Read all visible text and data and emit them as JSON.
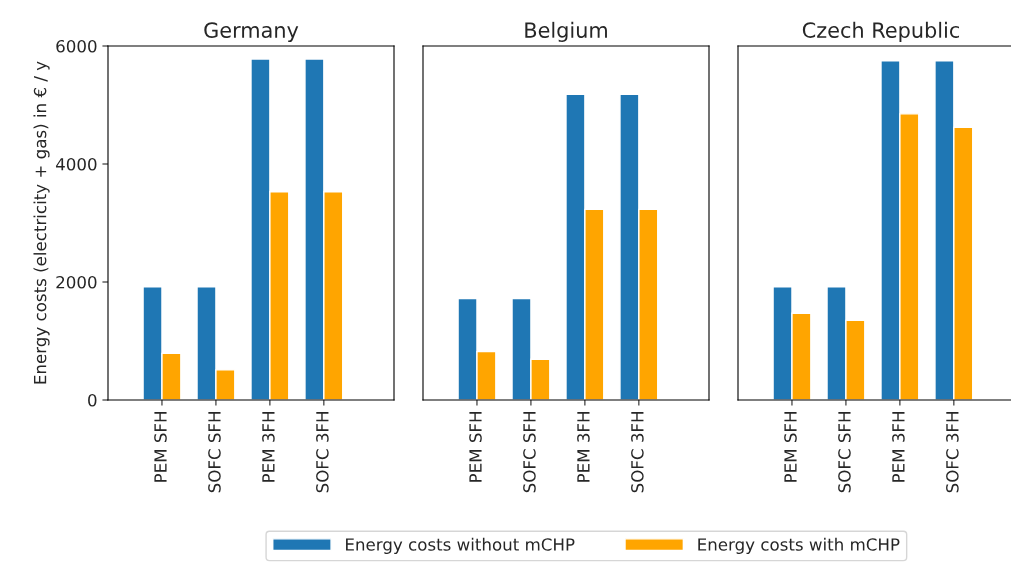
{
  "chart_data": [
    {
      "type": "bar",
      "title": "Germany",
      "ylabel": "Energy costs (electricity + gas) in € / y",
      "categories": [
        "PEM SFH",
        "SOFC SFH",
        "PEM 3FH",
        "SOFC 3FH"
      ],
      "ylim": [
        0,
        6000
      ],
      "yticks": [
        0,
        2000,
        4000,
        6000
      ],
      "legend": "bottom",
      "series": [
        {
          "name": "Energy costs without mCHP",
          "color": "#1f77b4",
          "values": [
            1920,
            1920,
            5780,
            5780
          ]
        },
        {
          "name": "Energy costs with mCHP",
          "color": "#ffa500",
          "values": [
            790,
            510,
            3530,
            3530
          ]
        }
      ]
    },
    {
      "type": "bar",
      "title": "Belgium",
      "categories": [
        "PEM SFH",
        "SOFC SFH",
        "PEM 3FH",
        "SOFC 3FH"
      ],
      "ylim": [
        0,
        6000
      ],
      "tick_labels": "x",
      "series": [
        {
          "color": "#1f77b4",
          "values": [
            1720,
            1720,
            5180,
            5180
          ]
        },
        {
          "color": "#ffa500",
          "values": [
            820,
            690,
            3230,
            3230
          ]
        }
      ]
    },
    {
      "type": "bar",
      "title": "Czech Republic",
      "categories": [
        "PEM SFH",
        "SOFC SFH",
        "PEM 3FH",
        "SOFC 3FH"
      ],
      "ylim": [
        0,
        6000
      ],
      "tick_labels": "x",
      "series": [
        {
          "color": "#1f77b4",
          "values": [
            1920,
            1920,
            5750,
            5750
          ]
        },
        {
          "color": "#ffa500",
          "values": [
            1470,
            1350,
            4850,
            4620
          ]
        }
      ]
    }
  ]
}
